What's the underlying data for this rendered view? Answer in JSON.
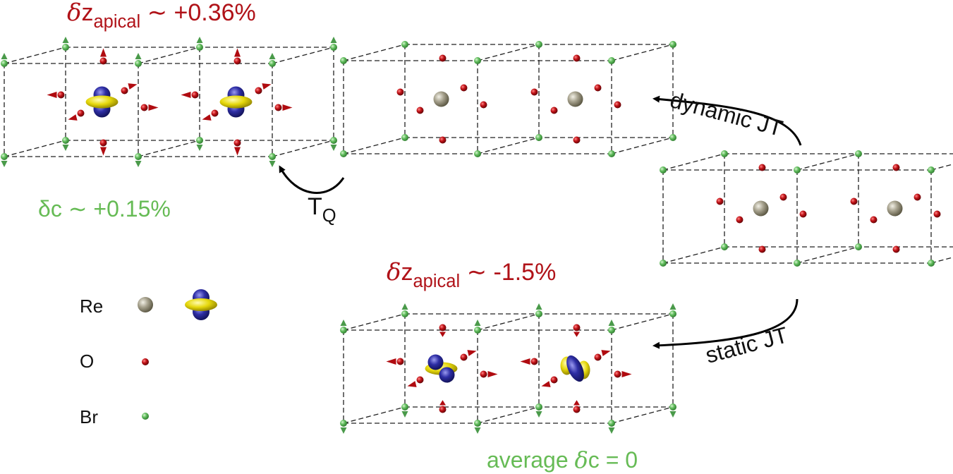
{
  "labels": {
    "dz_top": {
      "delta": "δ",
      "var": "z",
      "sub": "apical",
      "rest": " ∼ +0.36%"
    },
    "dc_top": "δc ∼ +0.15%",
    "tq": {
      "main": "T",
      "sub": "Q"
    },
    "dynamic": "dynamic JT",
    "static": "static JT",
    "dz_bottom": {
      "delta": "δ",
      "var": "z",
      "sub": "apical",
      "rest": " ∼ -1.5%"
    },
    "avg": {
      "text": "average ",
      "delta": "δ",
      "rest": "c = 0"
    }
  },
  "legend": [
    {
      "label": "Re"
    },
    {
      "label": "O"
    },
    {
      "label": "Br"
    }
  ],
  "colors": {
    "red_text": "#b01218",
    "green_text": "#66bb55",
    "re_atom": "#8c8772",
    "o_atom": "#b00b10",
    "br_atom": "#55b055",
    "orbital_blue": "#2c2c96",
    "orbital_yellow": "#e6d80c"
  }
}
